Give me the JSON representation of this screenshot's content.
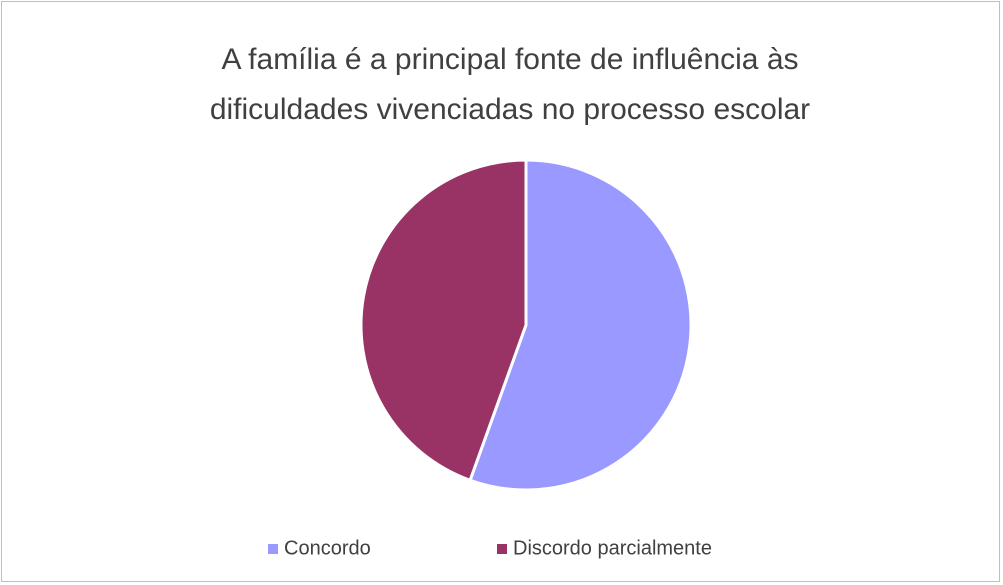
{
  "chart_data": {
    "type": "pie",
    "title": "A família é a principal fonte de influência às dificuldades vivenciadas no processo escolar",
    "categories": [
      "Concordo",
      "Discordo parcialmente"
    ],
    "values": [
      55.5,
      44.5
    ],
    "colors": [
      "#9999ff",
      "#993366"
    ],
    "legend": "bottom"
  }
}
